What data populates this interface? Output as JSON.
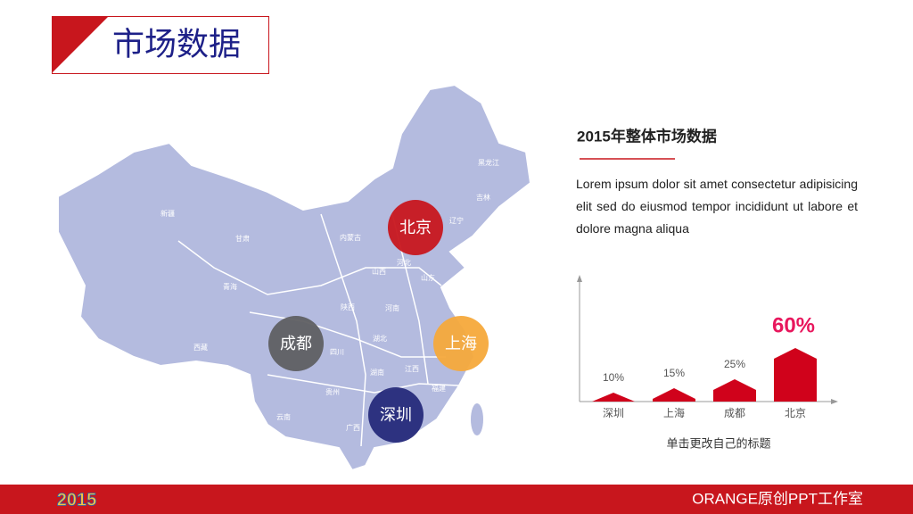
{
  "header": {
    "title": "市场数据"
  },
  "map": {
    "provinces": [
      "新疆",
      "西藏",
      "青海",
      "甘肃",
      "内蒙古",
      "四川",
      "云南",
      "贵州",
      "广西",
      "广东",
      "湖南",
      "湖北",
      "河南",
      "山西",
      "河北",
      "山东",
      "江西",
      "福建",
      "陕西",
      "黑龙江",
      "吉林",
      "辽宁"
    ],
    "cities": [
      {
        "label": "北京",
        "color": "#c8161d"
      },
      {
        "label": "成都",
        "color": "#5f5f62"
      },
      {
        "label": "上海",
        "color": "#f6a93b"
      },
      {
        "label": "深圳",
        "color": "#262a7a"
      }
    ]
  },
  "panel": {
    "title": "2015年整体市场数据",
    "text": "Lorem ipsum dolor sit amet consectetur adipisicing elit sed do eiusmod tempor incididunt ut labore et dolore magna aliqua"
  },
  "chart_data": {
    "type": "bar",
    "categories": [
      "深圳",
      "上海",
      "成都",
      "北京"
    ],
    "values": [
      10,
      15,
      25,
      60
    ],
    "value_labels": [
      "10%",
      "15%",
      "25%",
      "60%"
    ],
    "color": "#d0021b",
    "ylim": [
      0,
      90
    ],
    "caption": "单击更改自己的标题"
  },
  "footer": {
    "logo": "2015",
    "brand": "ORANGE原创PPT工作室"
  }
}
